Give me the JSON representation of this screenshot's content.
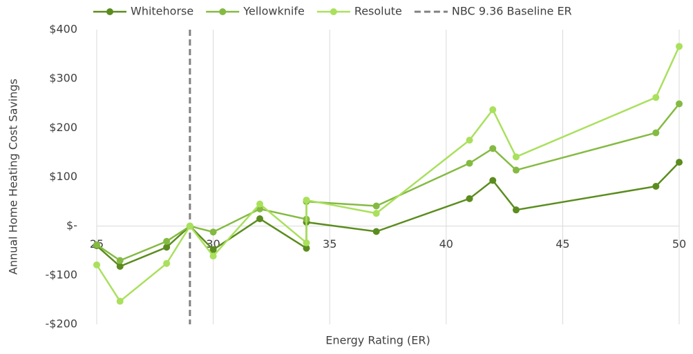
{
  "chart_data": {
    "type": "line",
    "xlabel": "Energy Rating (ER)",
    "ylabel": "Annual Home Heating Cost Savings",
    "x": [
      25,
      26,
      28,
      29,
      30,
      32,
      34,
      34,
      37,
      41,
      42,
      43,
      49,
      50
    ],
    "series": [
      {
        "name": "Whitehorse",
        "color": "#5b8c1e",
        "values": [
          -40,
          -82,
          -43,
          0,
          -48,
          15,
          -45,
          8,
          -11,
          56,
          93,
          33,
          81,
          130
        ]
      },
      {
        "name": "Yellowknife",
        "color": "#84ba42",
        "values": [
          -38,
          -70,
          -31,
          0,
          -12,
          35,
          14,
          50,
          41,
          128,
          158,
          114,
          190,
          249
        ]
      },
      {
        "name": "Resolute",
        "color": "#a9e05c",
        "values": [
          -79,
          -153,
          -76,
          0,
          -61,
          45,
          -34,
          53,
          26,
          175,
          237,
          141,
          262,
          366
        ]
      }
    ],
    "baseline": {
      "name": "NBC 9.36 Baseline ER",
      "x": 29,
      "color": "#808080"
    },
    "xlim": [
      25,
      50
    ],
    "xticks": [
      25,
      30,
      35,
      40,
      45,
      50
    ],
    "ylim": [
      -200,
      400
    ],
    "yticks": [
      {
        "value": -200,
        "label": "-$200"
      },
      {
        "value": -100,
        "label": "-$100"
      },
      {
        "value": 0,
        "label": "$-"
      },
      {
        "value": 100,
        "label": "$100"
      },
      {
        "value": 200,
        "label": "$200"
      },
      {
        "value": 300,
        "label": "$300"
      },
      {
        "value": 400,
        "label": "$400"
      }
    ],
    "grid": true,
    "legend": "top"
  }
}
